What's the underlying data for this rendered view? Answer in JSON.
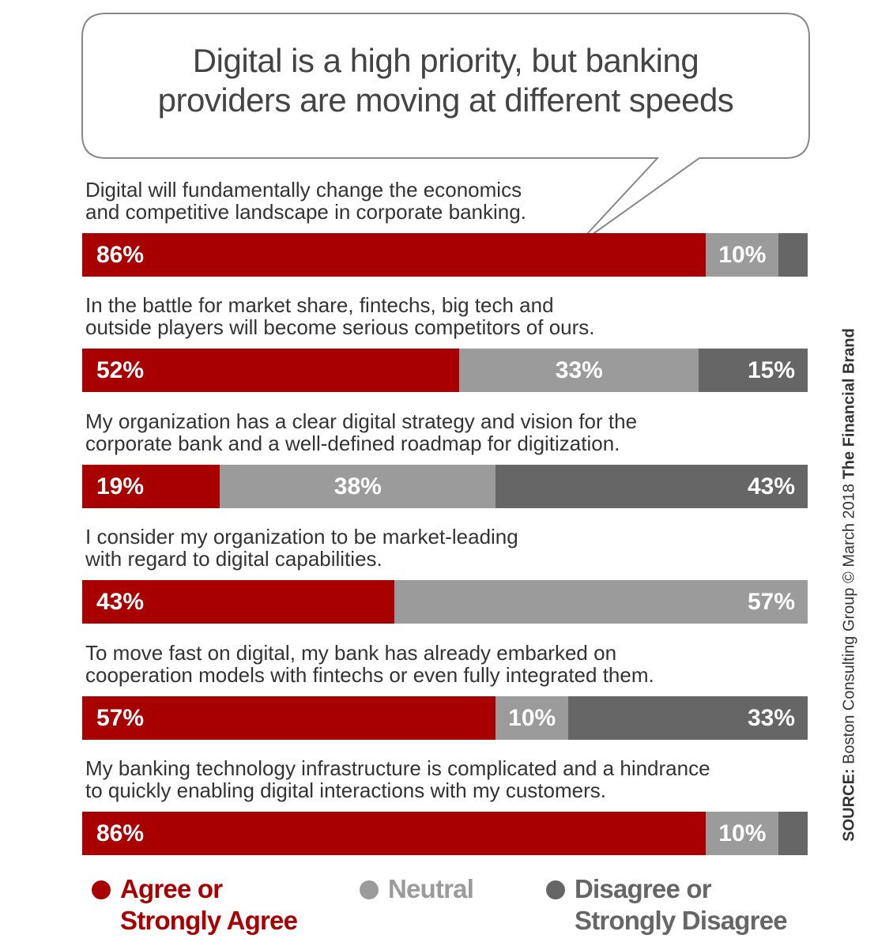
{
  "chart_data": {
    "type": "bar",
    "orientation": "horizontal",
    "stacked": true,
    "title": "Digital is a high priority, but banking\nproviders are moving at different speeds",
    "categories": [
      "Digital will fundamentally change the economics\nand competitive landscape in corporate banking.",
      "In the battle for market share, fintechs, big tech and\noutside players will become serious competitors of ours.",
      "My organization has a clear digital strategy and vision for the\ncorporate bank and a well-defined roadmap for digitization.",
      "I consider my organization to be market-leading\nwith regard to digital capabilities.",
      "To move fast on digital, my bank has already embarked on\ncooperation models with fintechs or even fully integrated them.",
      "My banking technology infrastructure is complicated and a hindrance\nto quickly enabling digital interactions with my customers."
    ],
    "xlim": [
      0,
      100
    ],
    "series": [
      {
        "name": "Agree or\nStrongly Agree",
        "color": "#a80000",
        "values": [
          86,
          52,
          19,
          43,
          57,
          86
        ],
        "value_labels": [
          "86%",
          "52%",
          "19%",
          "43%",
          "57%",
          "86%"
        ]
      },
      {
        "name": "Neutral",
        "color": "#9b9b9b",
        "values": [
          10,
          33,
          38,
          57,
          10,
          10
        ],
        "value_labels": [
          "10%",
          "33%",
          "38%",
          "57%",
          "10%",
          "10%"
        ]
      },
      {
        "name": "Disagree or\nStrongly Disagree",
        "color": "#666666",
        "values": [
          4,
          15,
          43,
          0,
          33,
          4
        ],
        "value_labels": [
          null,
          "15%",
          "43%",
          null,
          "33%",
          null
        ]
      }
    ],
    "source": {
      "label": "SOURCE:",
      "text": "Boston Consulting Group © March 2018",
      "brand": "The Financial Brand"
    }
  }
}
